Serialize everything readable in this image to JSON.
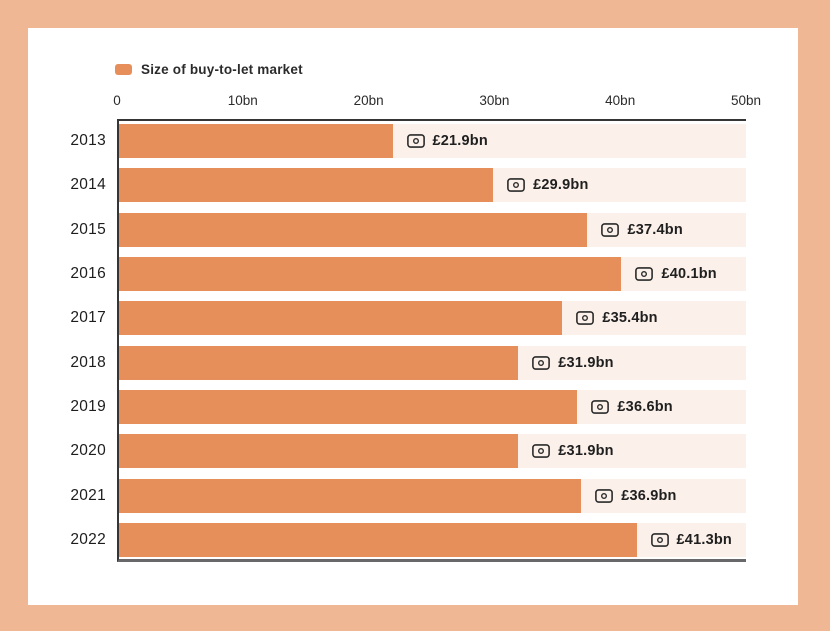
{
  "legend": {
    "label": "Size of buy-to-let market"
  },
  "colors": {
    "frame_background": "#f0b794",
    "card_background": "#ffffff",
    "bar": "#e78f5b",
    "track": "#fbf0ea",
    "axis_line": "#353535",
    "baseline": "#68686b",
    "text": "#1f1f1f"
  },
  "chart_data": {
    "type": "bar",
    "orientation": "horizontal",
    "title": "",
    "legend": [
      "Size of buy-to-let market"
    ],
    "legend_position": "top-left",
    "categories": [
      "2013",
      "2014",
      "2015",
      "2016",
      "2017",
      "2018",
      "2019",
      "2020",
      "2021",
      "2022"
    ],
    "values": [
      21.9,
      29.9,
      37.4,
      40.1,
      35.4,
      31.9,
      36.6,
      31.9,
      36.9,
      41.3
    ],
    "value_labels": [
      "£21.9bn",
      "£29.9bn",
      "£37.4bn",
      "£40.1bn",
      "£35.4bn",
      "£31.9bn",
      "£36.6bn",
      "£31.9bn",
      "£36.9bn",
      "£41.3bn"
    ],
    "value_unit": "£bn",
    "x_ticks": [
      "0",
      "10bn",
      "20bn",
      "30bn",
      "40bn",
      "50bn"
    ],
    "xlim": [
      0,
      50
    ],
    "grid": false,
    "bar_color": "#e78f5b",
    "track_color": "#fbf0ea"
  }
}
